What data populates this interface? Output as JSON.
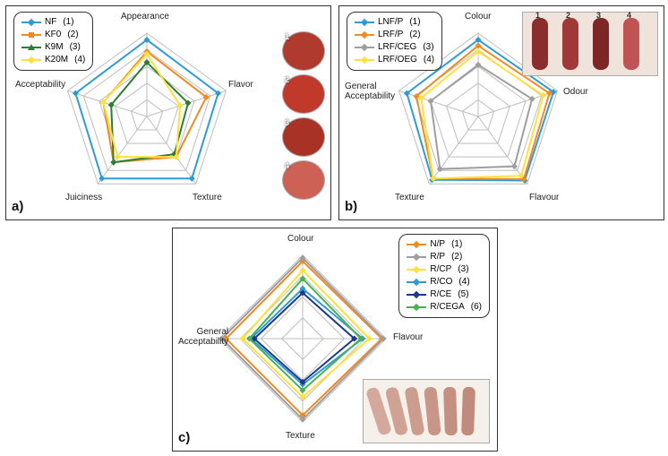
{
  "panels": {
    "a": {
      "label": "a)",
      "axes": [
        "Appearance",
        "Flavor",
        "Texture",
        "Juiciness",
        "Acceptability"
      ],
      "legend": [
        {
          "label": "NF",
          "num": "(1)",
          "color": "#2e9bd6",
          "marker": "diamond"
        },
        {
          "label": "KF0",
          "num": "(2)",
          "color": "#f08a24",
          "marker": "square"
        },
        {
          "label": "K9M",
          "num": "(3)",
          "color": "#2e7d32",
          "marker": "triangle"
        },
        {
          "label": "K20M",
          "num": "(4)",
          "color": "#ffe03d",
          "marker": "diamond"
        }
      ],
      "series": [
        {
          "color": "#2e9bd6",
          "values": [
            0.92,
            0.9,
            0.92,
            0.92,
            0.9
          ]
        },
        {
          "color": "#f08a24",
          "values": [
            0.78,
            0.75,
            0.6,
            0.68,
            0.55
          ]
        },
        {
          "color": "#2e7d32",
          "values": [
            0.65,
            0.52,
            0.56,
            0.68,
            0.45
          ]
        },
        {
          "color": "#ffe03d",
          "values": [
            0.75,
            0.42,
            0.6,
            0.6,
            0.55
          ]
        }
      ],
      "grid_color": "#bdbdbd",
      "rings": 5,
      "image_labels": [
        "1",
        "2",
        "3",
        "4"
      ]
    },
    "b": {
      "label": "b)",
      "axes": [
        "Colour",
        "Odour",
        "Flavour",
        "Texture",
        "General\nAcceptability"
      ],
      "legend": [
        {
          "label": "LNF/P",
          "num": "(1)",
          "color": "#2e9bd6",
          "marker": "diamond"
        },
        {
          "label": "LRF/P",
          "num": "(2)",
          "color": "#f08a24",
          "marker": "diamond"
        },
        {
          "label": "LRF/CEG",
          "num": "(3)",
          "color": "#9e9e9e",
          "marker": "diamond"
        },
        {
          "label": "LRF/OEG",
          "num": "(4)",
          "color": "#ffe03d",
          "marker": "diamond"
        }
      ],
      "series": [
        {
          "color": "#2e9bd6",
          "values": [
            0.92,
            0.95,
            0.95,
            0.94,
            0.9
          ]
        },
        {
          "color": "#f08a24",
          "values": [
            0.85,
            0.9,
            0.93,
            0.92,
            0.78
          ]
        },
        {
          "color": "#9e9e9e",
          "values": [
            0.62,
            0.68,
            0.74,
            0.78,
            0.6
          ]
        },
        {
          "color": "#ffe03d",
          "values": [
            0.78,
            0.82,
            0.88,
            0.92,
            0.72
          ]
        }
      ],
      "grid_color": "#bdbdbd",
      "rings": 5,
      "image_labels": [
        "1",
        "2",
        "3",
        "4"
      ]
    },
    "c": {
      "label": "c)",
      "axes": [
        "Colour",
        "Flavour",
        "Texture",
        "General\nAcceptability"
      ],
      "legend": [
        {
          "label": "N/P",
          "num": "(1)",
          "color": "#f08a24",
          "marker": "diamond"
        },
        {
          "label": "R/P",
          "num": "(2)",
          "color": "#9e9e9e",
          "marker": "diamond"
        },
        {
          "label": "R/CP",
          "num": "(3)",
          "color": "#ffe03d",
          "marker": "diamond"
        },
        {
          "label": "R/CO",
          "num": "(4)",
          "color": "#2e9bd6",
          "marker": "diamond"
        },
        {
          "label": "R/CE",
          "num": "(5)",
          "color": "#1b3a8a",
          "marker": "diamond"
        },
        {
          "label": "R/CEGA",
          "num": "(6)",
          "color": "#4caf50",
          "marker": "diamond"
        }
      ],
      "series": [
        {
          "color": "#f08a24",
          "values": [
            0.93,
            0.95,
            0.92,
            0.92
          ]
        },
        {
          "color": "#9e9e9e",
          "values": [
            0.97,
            0.97,
            0.97,
            0.97
          ]
        },
        {
          "color": "#ffe03d",
          "values": [
            0.82,
            0.8,
            0.7,
            0.72
          ]
        },
        {
          "color": "#2e9bd6",
          "values": [
            0.6,
            0.72,
            0.55,
            0.62
          ]
        },
        {
          "color": "#1b3a8a",
          "values": [
            0.55,
            0.62,
            0.52,
            0.58
          ]
        },
        {
          "color": "#4caf50",
          "values": [
            0.72,
            0.7,
            0.62,
            0.64
          ]
        }
      ],
      "grid_color": "#bdbdbd",
      "rings": 4,
      "image_labels": [
        "1",
        "2",
        "3",
        "4",
        "5",
        "6"
      ]
    }
  },
  "line_width": 2,
  "marker_size": 5,
  "axis_font_size": 10,
  "legend_font_size": 10,
  "panel_label_font_size": 15,
  "background": "#ffffff"
}
